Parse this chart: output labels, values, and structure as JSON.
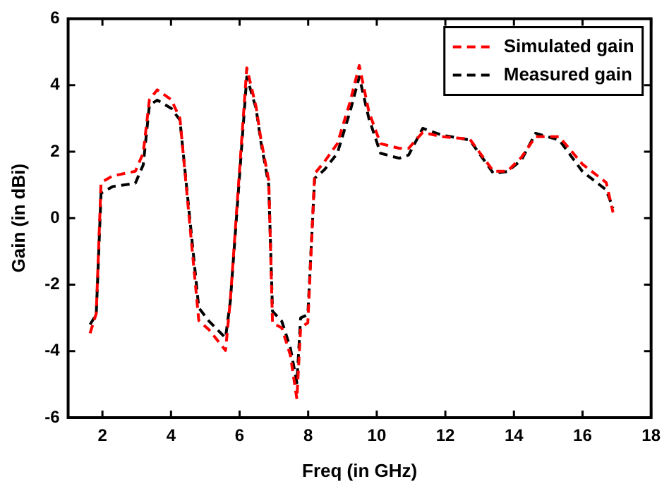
{
  "chart_data": {
    "type": "line",
    "xlabel": "Freq (in GHz)",
    "ylabel": "Gain (in dBi)",
    "xlim": [
      1,
      18
    ],
    "ylim": [
      -6,
      6
    ],
    "xticks": [
      2,
      4,
      6,
      8,
      10,
      12,
      14,
      16,
      18
    ],
    "yticks": [
      -6,
      -4,
      -2,
      0,
      2,
      4,
      6
    ],
    "grid": false,
    "legend": "top right",
    "marker": "none",
    "line_style": "dashed",
    "series": [
      {
        "name": "Simulated gain",
        "color": "#ff0000",
        "x": [
          1.64,
          1.82,
          1.96,
          2.3,
          2.96,
          3.19,
          3.37,
          3.6,
          4.01,
          4.26,
          4.81,
          5.11,
          5.59,
          5.73,
          6.21,
          6.48,
          6.62,
          6.85,
          6.96,
          7.23,
          7.48,
          7.67,
          7.78,
          7.99,
          8.19,
          8.47,
          8.85,
          9.22,
          9.49,
          9.77,
          10.11,
          10.66,
          10.93,
          11.34,
          11.89,
          12.71,
          13.4,
          13.81,
          14.22,
          14.63,
          15.32,
          16.0,
          16.69,
          16.89
        ],
        "values": [
          -3.46,
          -2.87,
          1.07,
          1.27,
          1.41,
          1.96,
          3.56,
          3.86,
          3.56,
          3.0,
          -3.08,
          -3.36,
          -3.98,
          -2.46,
          4.52,
          3.35,
          2.38,
          1.13,
          -3.15,
          -3.3,
          -4.12,
          -5.44,
          -3.29,
          -3.15,
          1.34,
          1.69,
          2.24,
          3.49,
          4.59,
          3.2,
          2.24,
          2.1,
          2.1,
          2.58,
          2.45,
          2.38,
          1.41,
          1.41,
          1.83,
          2.45,
          2.45,
          1.62,
          1.07,
          0.17
        ]
      },
      {
        "name": "Measured gain",
        "color": "#000000",
        "x": [
          1.64,
          1.82,
          1.96,
          2.3,
          2.96,
          3.19,
          3.37,
          3.6,
          4.01,
          4.26,
          4.81,
          5.11,
          5.59,
          5.73,
          6.21,
          6.48,
          6.62,
          6.85,
          6.96,
          7.23,
          7.48,
          7.67,
          7.78,
          7.99,
          8.19,
          8.47,
          8.85,
          9.22,
          9.49,
          9.77,
          10.11,
          10.66,
          10.93,
          11.34,
          11.89,
          12.71,
          13.4,
          13.81,
          14.22,
          14.63,
          15.32,
          16.0,
          16.69,
          16.89
        ],
        "values": [
          -3.2,
          -2.9,
          0.75,
          0.95,
          1.05,
          1.6,
          3.4,
          3.55,
          3.3,
          2.95,
          -2.7,
          -3.1,
          -3.6,
          -2.5,
          4.25,
          3.3,
          2.3,
          1.0,
          -2.8,
          -3.1,
          -3.9,
          -4.95,
          -3.0,
          -2.9,
          1.2,
          1.45,
          1.95,
          3.2,
          4.25,
          3.0,
          1.95,
          1.8,
          1.9,
          2.7,
          2.5,
          2.35,
          1.35,
          1.4,
          1.75,
          2.55,
          2.35,
          1.4,
          0.85,
          0.3
        ]
      }
    ]
  }
}
